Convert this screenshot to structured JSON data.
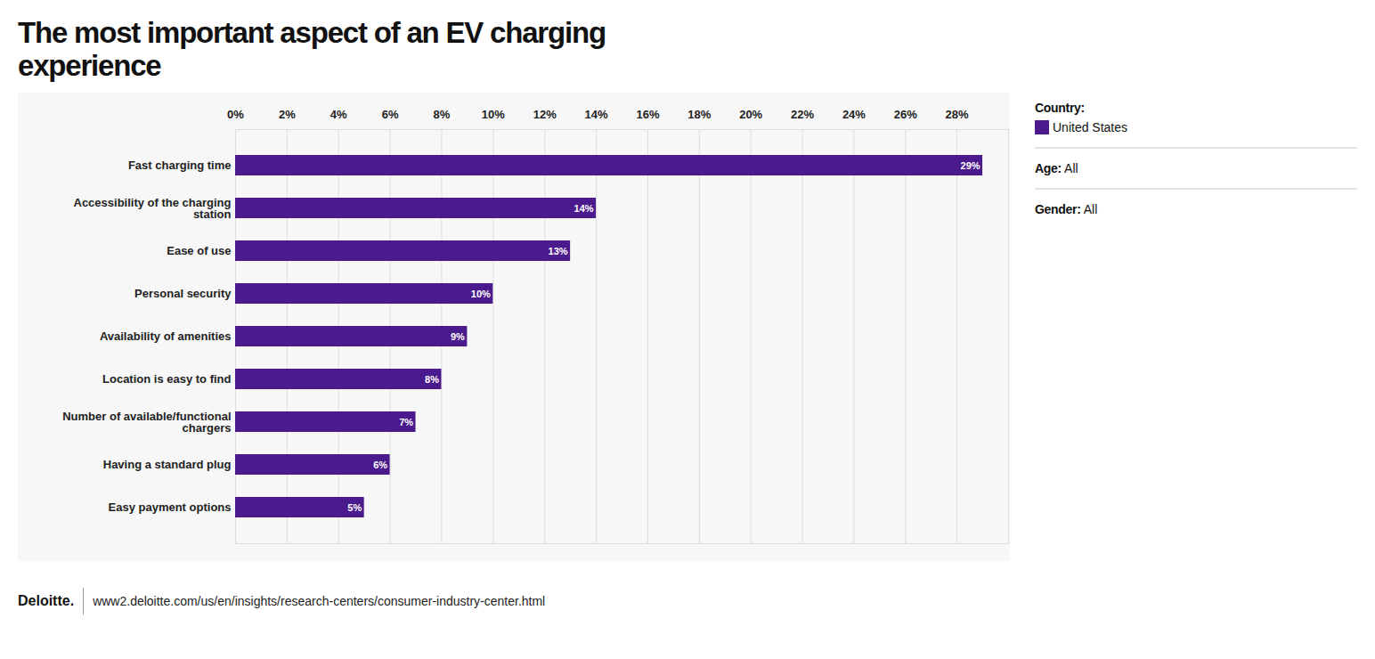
{
  "chart_data": {
    "type": "bar",
    "orientation": "horizontal",
    "title": "The most important aspect of an EV charging experience",
    "categories": [
      "Fast charging time",
      "Accessibility of the charging station",
      "Ease of use",
      "Personal security",
      "Availability of amenities",
      "Location is easy to find",
      "Number of available/functional chargers",
      "Having a standard plug",
      "Easy payment options"
    ],
    "series": [
      {
        "name": "United States",
        "color": "#4b1a8c",
        "values": [
          29,
          14,
          13,
          10,
          9,
          8,
          7,
          6,
          5
        ],
        "value_labels": [
          "29%",
          "14%",
          "13%",
          "10%",
          "9%",
          "8%",
          "7%",
          "6%",
          "5%"
        ]
      }
    ],
    "data_labels": true,
    "xlim": [
      0,
      30
    ],
    "xticks": [
      {
        "value": 0,
        "label": "0%"
      },
      {
        "value": 2,
        "label": "2%"
      },
      {
        "value": 4,
        "label": "4%"
      },
      {
        "value": 6,
        "label": "6%"
      },
      {
        "value": 8,
        "label": "8%"
      },
      {
        "value": 10,
        "label": "10%"
      },
      {
        "value": 12,
        "label": "12%"
      },
      {
        "value": 14,
        "label": "14%"
      },
      {
        "value": 16,
        "label": "16%"
      },
      {
        "value": 18,
        "label": "18%"
      },
      {
        "value": 20,
        "label": "20%"
      },
      {
        "value": 22,
        "label": "22%"
      },
      {
        "value": 24,
        "label": "24%"
      },
      {
        "value": 26,
        "label": "26%"
      },
      {
        "value": 28,
        "label": "28%"
      }
    ],
    "grid": true,
    "legend": "right",
    "legend_title": "Country:",
    "filters": [
      {
        "label": "Age:",
        "value": "All"
      },
      {
        "label": "Gender:",
        "value": "All"
      }
    ],
    "source": {
      "brand": "Deloitte.",
      "url": "www2.deloitte.com/us/en/insights/research-centers/consumer-industry-center.html"
    }
  }
}
